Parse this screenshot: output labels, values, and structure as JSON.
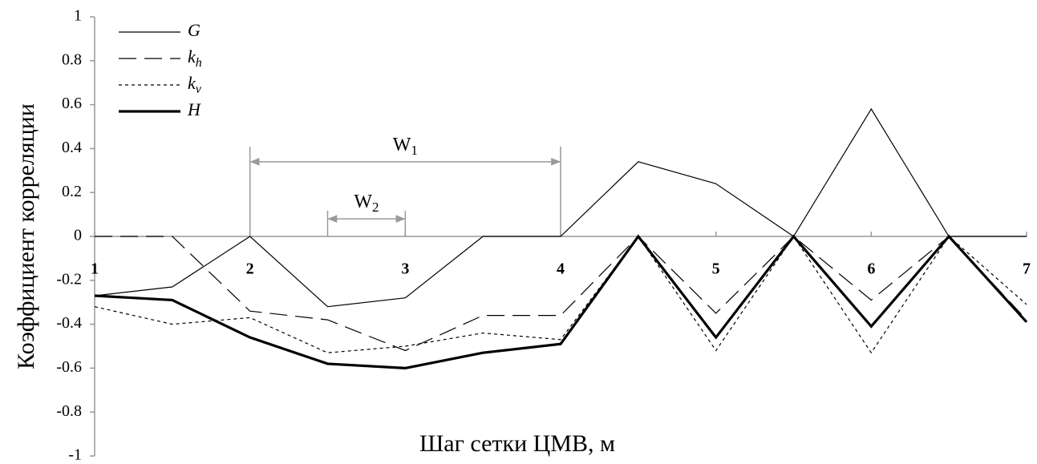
{
  "chart_data": {
    "type": "line",
    "x_label": "Шаг сетки ЦМВ, м",
    "y_label": "Коэффициент корреляции",
    "x": [
      1,
      1.5,
      2,
      2.5,
      3,
      3.5,
      4,
      4.5,
      5,
      5.5,
      6,
      6.5,
      7
    ],
    "xlim": [
      1,
      7
    ],
    "xticks": [
      1,
      2,
      3,
      4,
      5,
      6,
      7
    ],
    "ylim": [
      -1,
      1
    ],
    "yticks": [
      1,
      0.8,
      0.6,
      0.4,
      0.2,
      0,
      -0.2,
      -0.4,
      -0.6,
      -0.8,
      -1
    ],
    "legend": "upper left",
    "series": [
      {
        "name": "G",
        "color": "#000000",
        "linestyle": "solid",
        "values": [
          -0.27,
          -0.23,
          0,
          -0.32,
          -0.28,
          0,
          0,
          0.34,
          0.24,
          0,
          0.58,
          0,
          0
        ]
      },
      {
        "name": "k",
        "subscript": "h",
        "color": "#000000",
        "linestyle": "dashed",
        "values": [
          0,
          0,
          -0.34,
          -0.38,
          -0.52,
          -0.36,
          -0.36,
          0,
          -0.35,
          0,
          -0.29,
          0,
          -0.38
        ]
      },
      {
        "name": "k",
        "subscript": "v",
        "color": "#000000",
        "linestyle": "dotted",
        "values": [
          -0.32,
          -0.4,
          -0.37,
          -0.53,
          -0.5,
          -0.44,
          -0.47,
          0,
          -0.52,
          0,
          -0.53,
          0,
          -0.31
        ]
      },
      {
        "name": "H",
        "color": "#000000",
        "linestyle": "bold",
        "values": [
          -0.27,
          -0.29,
          -0.46,
          -0.58,
          -0.6,
          -0.53,
          -0.49,
          0,
          -0.46,
          0,
          -0.41,
          0,
          -0.39
        ]
      }
    ],
    "annotations": [
      {
        "text": "W",
        "subscript": "1",
        "x": [
          2,
          4
        ],
        "y": 0.34
      },
      {
        "text": "W",
        "subscript": "2",
        "x": [
          2.5,
          3
        ],
        "y": 0.08
      }
    ]
  }
}
